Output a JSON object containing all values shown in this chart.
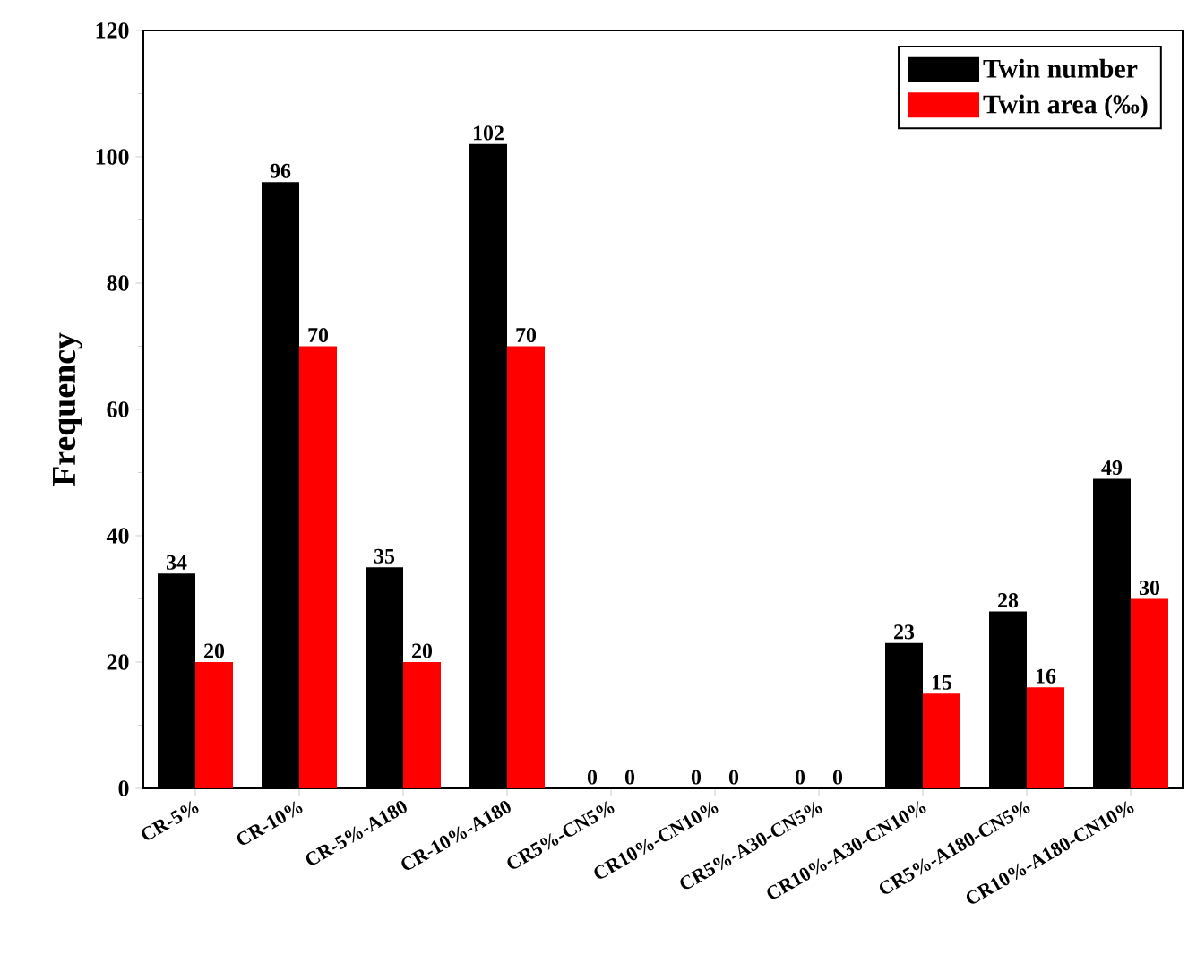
{
  "chart_data": {
    "type": "bar",
    "ylabel": "Frequency",
    "categories": [
      "CR-5%",
      "CR-10%",
      "CR-5%-A180",
      "CR-10%-A180",
      "CR5%-CN5%",
      "CR10%-CN10%",
      "CR5%-A30-CN5%",
      "CR10%-A30-CN10%",
      "CR5%-A180-CN5%",
      "CR10%-A180-CN10%"
    ],
    "series": [
      {
        "name": "Twin number",
        "color": "#000000",
        "values": [
          34,
          96,
          35,
          102,
          0,
          0,
          0,
          23,
          28,
          49
        ]
      },
      {
        "name": "Twin area (‰)",
        "color": "#ff0000",
        "values": [
          20,
          70,
          20,
          70,
          0,
          0,
          0,
          15,
          16,
          30
        ]
      }
    ],
    "ylim": [
      0,
      120
    ],
    "yticks": [
      0,
      20,
      40,
      60,
      80,
      100,
      120
    ],
    "grid": false,
    "legend": "top right",
    "data_labels": true
  }
}
